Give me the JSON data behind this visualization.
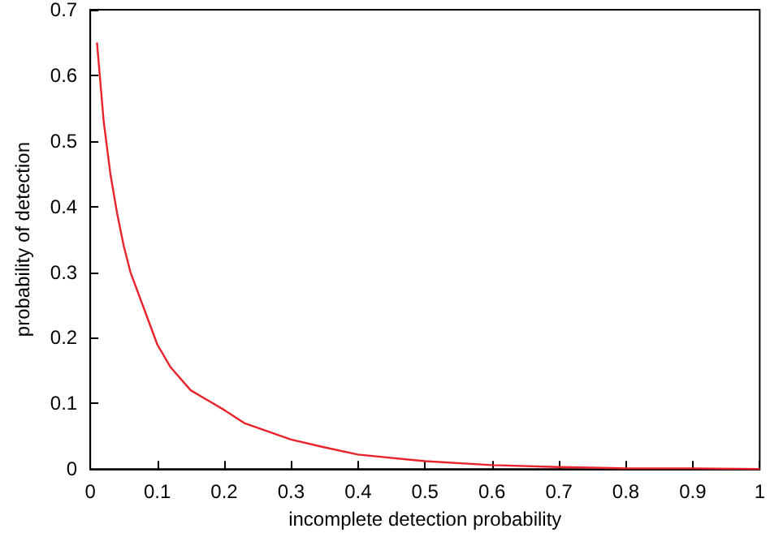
{
  "chart_data": {
    "type": "line",
    "xlabel": "incomplete detection probability",
    "ylabel": "probability of detection",
    "x": [
      0.01,
      0.02,
      0.03,
      0.04,
      0.05,
      0.06,
      0.08,
      0.1,
      0.12,
      0.15,
      0.2,
      0.23,
      0.3,
      0.35,
      0.4,
      0.5,
      0.6,
      0.7,
      0.8,
      0.9,
      1
    ],
    "series": [
      {
        "color": "#e8232b",
        "values": [
          0.65,
          0.53,
          0.45,
          0.39,
          0.34,
          0.3,
          0.245,
          0.19,
          0.155,
          0.12,
          0.09,
          0.07,
          0.045,
          0.033,
          0.022,
          0.012,
          0.006,
          0.003,
          0.001,
          0.001,
          0
        ]
      }
    ],
    "xlim": [
      0,
      1
    ],
    "ylim": [
      0,
      0.7
    ],
    "xticks": [
      0,
      0.1,
      0.2,
      0.3,
      0.4,
      0.5,
      0.6,
      0.7,
      0.8,
      0.9,
      1
    ],
    "yticks": [
      0,
      0.1,
      0.2,
      0.3,
      0.4,
      0.5,
      0.6,
      0.7
    ],
    "grid": false,
    "marker": "none",
    "line_style": "solid"
  }
}
